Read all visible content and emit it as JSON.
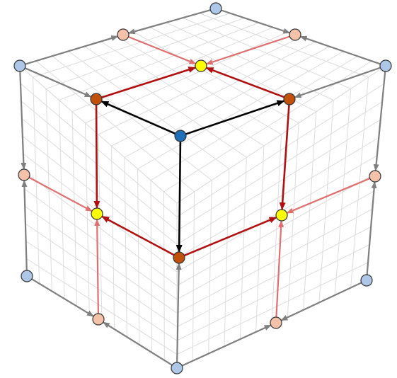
{
  "colors": {
    "background": "#ffffff",
    "grid": "#dcdcdc",
    "gray_arrow": "#7f7f7f",
    "dark_red_arrow": "#b01010",
    "light_red_arrow": "#e07070",
    "black_arrow": "#000000",
    "center_node": "#1f6fb8",
    "corner_node": "#aec6e8",
    "edge_node": "#f4c2a8",
    "level1_node": "#c0500a",
    "level2_node": "#ffff00",
    "node_outline": "#333333"
  },
  "diagram": {
    "description_visible_text": "",
    "grid_divisions": 12
  }
}
